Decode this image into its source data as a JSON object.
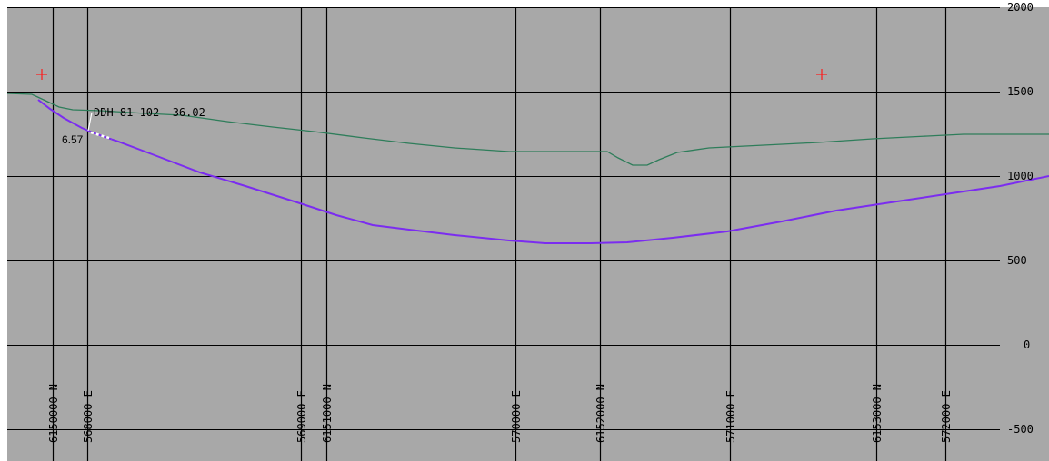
{
  "section": {
    "background_color": "#a8a8a8",
    "grid_color": "#000000",
    "elevation_labels": [
      "2000",
      "1500",
      "1000",
      "500",
      "0",
      "-500"
    ],
    "coordinate_labels": [
      {
        "text": "6150000 N"
      },
      {
        "text": "568000 E"
      },
      {
        "text": "569000 E"
      },
      {
        "text": "6151000 N"
      },
      {
        "text": "570000 E"
      },
      {
        "text": "6152000 N"
      },
      {
        "text": "571000 E"
      },
      {
        "text": "6153000 N"
      },
      {
        "text": "572000 E"
      }
    ],
    "drillhole_label": "DDH-81-102 -36.02",
    "intercept_label": "6.57",
    "surface_color": "#2e7d5a",
    "trace_color": "#7b2cf0",
    "marker_color": "#ff1a1a"
  }
}
